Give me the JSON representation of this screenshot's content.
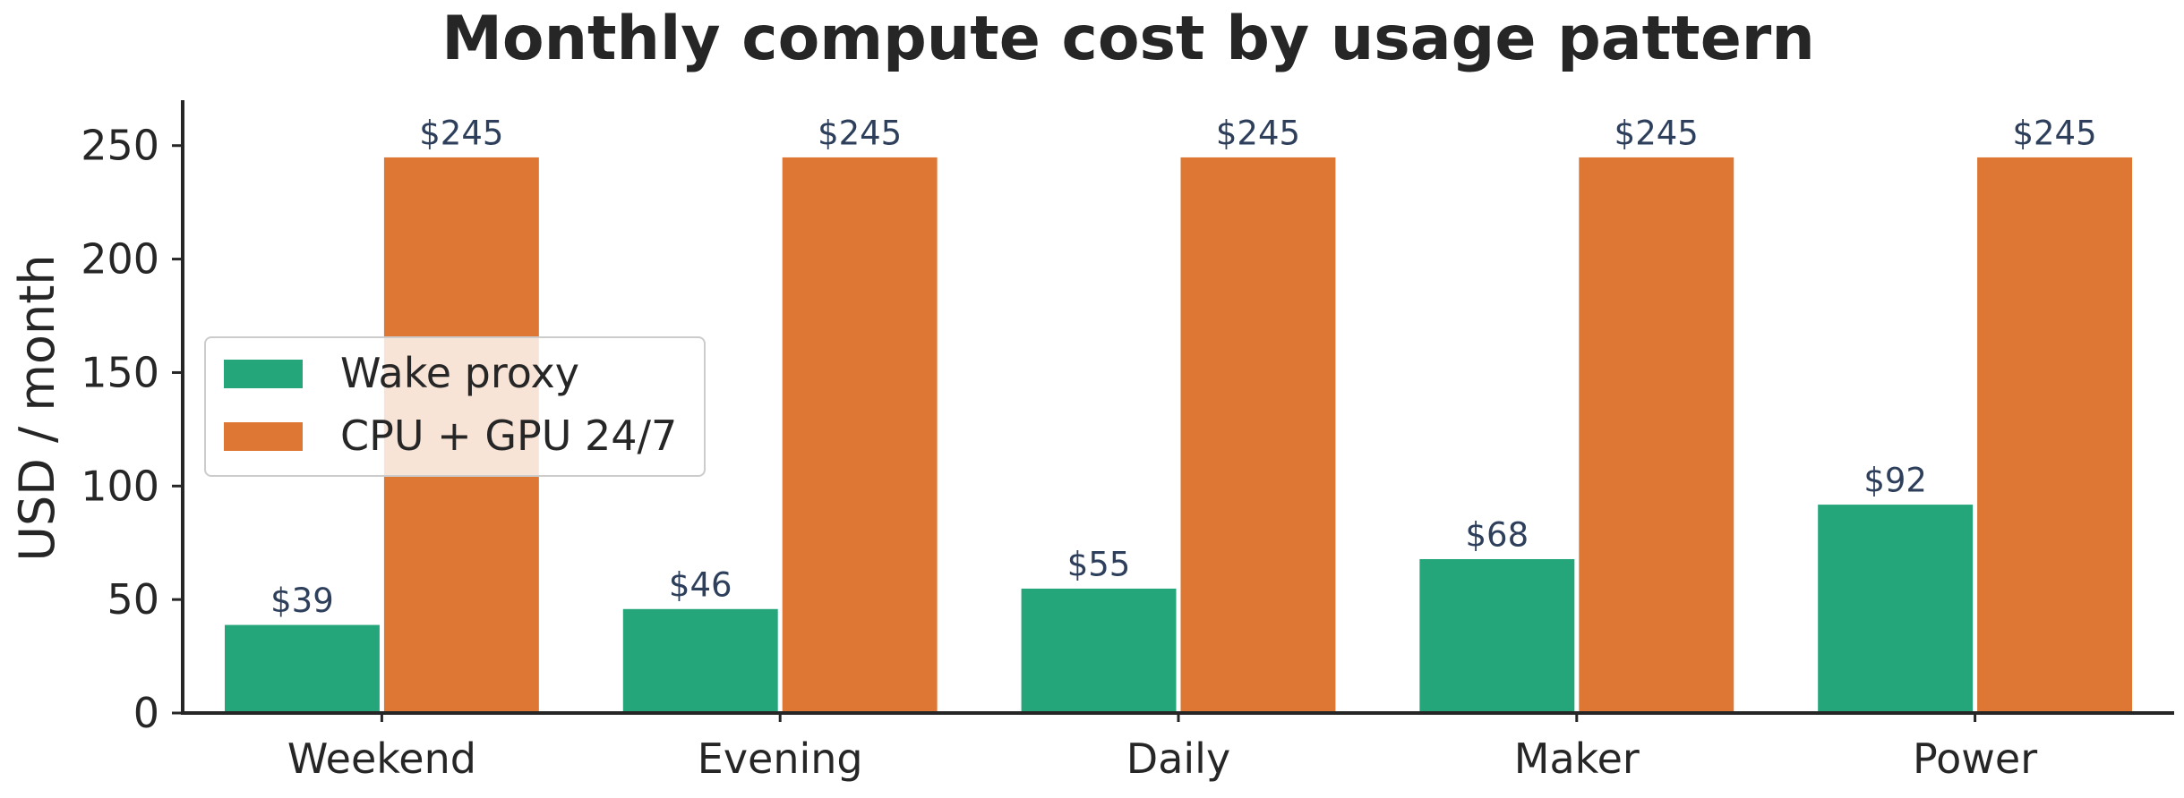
{
  "chart_data": {
    "type": "bar",
    "title": "Monthly compute cost by usage pattern",
    "xlabel": "",
    "ylabel": "USD / month",
    "categories": [
      "Weekend",
      "Evening",
      "Daily",
      "Maker",
      "Power"
    ],
    "series": [
      {
        "name": "Wake proxy",
        "color": "#25a57a",
        "values": [
          39,
          46,
          55,
          68,
          92
        ],
        "labels": [
          "$39",
          "$46",
          "$55",
          "$68",
          "$92"
        ]
      },
      {
        "name": "CPU + GPU 24/7",
        "color": "#dd7733",
        "values": [
          245,
          245,
          245,
          245,
          245
        ],
        "labels": [
          "$245",
          "$245",
          "$245",
          "$245",
          "$245"
        ]
      }
    ],
    "ylim": [
      0,
      270
    ],
    "yticks": [
      0,
      50,
      100,
      150,
      200,
      250
    ],
    "grid": false,
    "legend_position": "center-left"
  }
}
